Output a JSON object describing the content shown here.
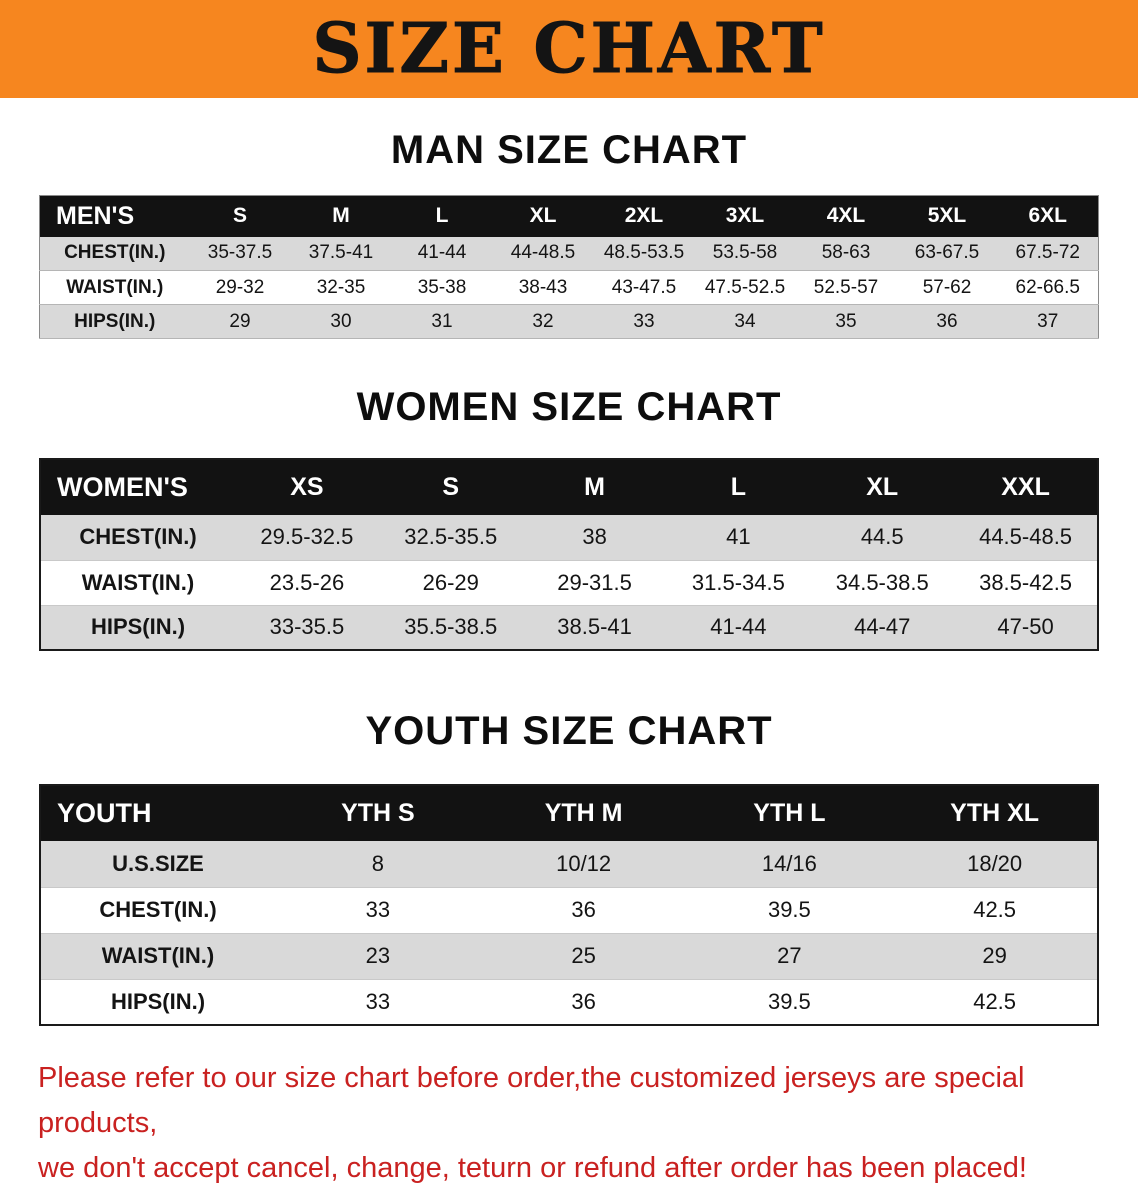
{
  "banner": {
    "title": "SIZE CHART",
    "bg_color": "#f6861f",
    "text_color": "#141414"
  },
  "chart_data": [
    {
      "type": "table",
      "title": "MAN SIZE CHART",
      "columns": [
        "MEN'S",
        "S",
        "M",
        "L",
        "XL",
        "2XL",
        "3XL",
        "4XL",
        "5XL",
        "6XL"
      ],
      "rows": [
        [
          "CHEST(IN.)",
          "35-37.5",
          "37.5-41",
          "41-44",
          "44-48.5",
          "48.5-53.5",
          "53.5-58",
          "58-63",
          "63-67.5",
          "67.5-72"
        ],
        [
          "WAIST(IN.)",
          "29-32",
          "32-35",
          "35-38",
          "38-43",
          "43-47.5",
          "47.5-52.5",
          "52.5-57",
          "57-62",
          "62-66.5"
        ],
        [
          "HIPS(IN.)",
          "29",
          "30",
          "31",
          "32",
          "33",
          "34",
          "35",
          "36",
          "37"
        ]
      ],
      "header_bg": "#121212",
      "alt_row_bg": "#d9d9d9"
    },
    {
      "type": "table",
      "title": "WOMEN SIZE CHART",
      "columns": [
        "WOMEN'S",
        "XS",
        "S",
        "M",
        "L",
        "XL",
        "XXL"
      ],
      "rows": [
        [
          "CHEST(IN.)",
          "29.5-32.5",
          "32.5-35.5",
          "38",
          "41",
          "44.5",
          "44.5-48.5"
        ],
        [
          "WAIST(IN.)",
          "23.5-26",
          "26-29",
          "29-31.5",
          "31.5-34.5",
          "34.5-38.5",
          "38.5-42.5"
        ],
        [
          "HIPS(IN.)",
          "33-35.5",
          "35.5-38.5",
          "38.5-41",
          "41-44",
          "44-47",
          "47-50"
        ]
      ],
      "header_bg": "#121212",
      "alt_row_bg": "#d9d9d9"
    },
    {
      "type": "table",
      "title": "YOUTH SIZE CHART",
      "columns": [
        "YOUTH",
        "YTH S",
        "YTH M",
        "YTH L",
        "YTH XL"
      ],
      "rows": [
        [
          "U.S.SIZE",
          "8",
          "10/12",
          "14/16",
          "18/20"
        ],
        [
          "CHEST(IN.)",
          "33",
          "36",
          "39.5",
          "42.5"
        ],
        [
          "WAIST(IN.)",
          "23",
          "25",
          "27",
          "29"
        ],
        [
          "HIPS(IN.)",
          "33",
          "36",
          "39.5",
          "42.5"
        ]
      ],
      "header_bg": "#121212",
      "alt_row_bg": "#d9d9d9"
    }
  ],
  "footer": {
    "line1": "Please refer to our size chart before order,the customized jerseys are special products,",
    "line2": "we don't accept cancel, change, teturn or refund after order has been placed!",
    "color": "#c92120"
  }
}
